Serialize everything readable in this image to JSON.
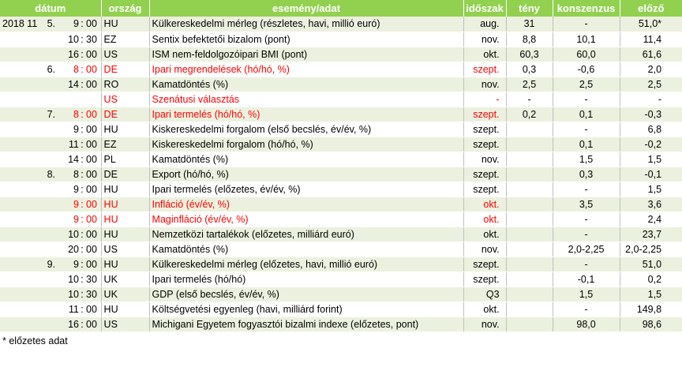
{
  "headers": {
    "date": "dátum",
    "country": "ország",
    "event": "esemény/adat",
    "period": "időszak",
    "actual": "tény",
    "consensus": "konszenzus",
    "previous": "előző"
  },
  "rows": [
    {
      "date": "2018 11.",
      "day": "5.",
      "hh": "9",
      "sep": ":",
      "mm": "00",
      "country": "HU",
      "event": "Külkereskedelmi mérleg (részletes, havi, millió euró)",
      "period": "aug.",
      "actual": "31",
      "consensus": "-",
      "previous": "51,0*",
      "red": false
    },
    {
      "date": "",
      "day": "",
      "hh": "10",
      "sep": ":",
      "mm": "30",
      "country": "EZ",
      "event": "Sentix befektetői bizalom (pont)",
      "period": "nov.",
      "actual": "8,8",
      "consensus": "10,1",
      "previous": "11,4",
      "red": false
    },
    {
      "date": "",
      "day": "",
      "hh": "16",
      "sep": ":",
      "mm": "00",
      "country": "US",
      "event": "ISM nem-feldolgozóipari BMI (pont)",
      "period": "okt.",
      "actual": "60,3",
      "consensus": "60,0",
      "previous": "61,6",
      "red": false
    },
    {
      "date": "",
      "day": "6.",
      "hh": "8",
      "sep": ":",
      "mm": "00",
      "country": "DE",
      "event": "Ipari megrendelések (hó/hó, %)",
      "period": "szept.",
      "actual": "0,3",
      "consensus": "-0,6",
      "previous": "2,0",
      "red": true
    },
    {
      "date": "",
      "day": "",
      "hh": "14",
      "sep": ":",
      "mm": "00",
      "country": "RO",
      "event": "Kamatdöntés (%)",
      "period": "nov.",
      "actual": "2,5",
      "consensus": "2,5",
      "previous": "2,5",
      "red": false
    },
    {
      "date": "",
      "day": "",
      "hh": "",
      "sep": "",
      "mm": "",
      "country": "US",
      "event": "Szenátusi választás",
      "period": "-",
      "actual": "-",
      "consensus": "-",
      "previous": "-",
      "red": true
    },
    {
      "date": "",
      "day": "7.",
      "hh": "8",
      "sep": ":",
      "mm": "00",
      "country": "DE",
      "event": "Ipari termelés (hó/hó, %)",
      "period": "szept.",
      "actual": "0,2",
      "consensus": "0,1",
      "previous": "-0,3",
      "red": true
    },
    {
      "date": "",
      "day": "",
      "hh": "9",
      "sep": ":",
      "mm": "00",
      "country": "HU",
      "event": "Kiskereskedelmi forgalom (első becslés, év/év, %)",
      "period": "szept.",
      "actual": "",
      "consensus": "-",
      "previous": "6,8",
      "red": false
    },
    {
      "date": "",
      "day": "",
      "hh": "11",
      "sep": ":",
      "mm": "00",
      "country": "EZ",
      "event": "Kiskereskedelmi forgalom (hó/hó, %)",
      "period": "szept.",
      "actual": "",
      "consensus": "0,1",
      "previous": "-0,2",
      "red": false
    },
    {
      "date": "",
      "day": "",
      "hh": "14",
      "sep": ":",
      "mm": "00",
      "country": "PL",
      "event": "Kamatdöntés (%)",
      "period": "nov.",
      "actual": "",
      "consensus": "1,5",
      "previous": "1,5",
      "red": false
    },
    {
      "date": "",
      "day": "8.",
      "hh": "8",
      "sep": ":",
      "mm": "00",
      "country": "DE",
      "event": "Export (hó/hó, %)",
      "period": "szept.",
      "actual": "",
      "consensus": "0,3",
      "previous": "-0,1",
      "red": false
    },
    {
      "date": "",
      "day": "",
      "hh": "9",
      "sep": ":",
      "mm": "00",
      "country": "HU",
      "event": "Ipari termelés (előzetes, év/év, %)",
      "period": "szept.",
      "actual": "",
      "consensus": "-",
      "previous": "1,5",
      "red": false
    },
    {
      "date": "",
      "day": "",
      "hh": "9",
      "sep": ":",
      "mm": "00",
      "country": "HU",
      "event": "Infláció (év/év, %)",
      "period": "okt.",
      "actual": "",
      "consensus": "3,5",
      "previous": "3,6",
      "red": true
    },
    {
      "date": "",
      "day": "",
      "hh": "9",
      "sep": ":",
      "mm": "00",
      "country": "HU",
      "event": "Maginfláció (év/év, %)",
      "period": "okt.",
      "actual": "",
      "consensus": "-",
      "previous": "2,4",
      "red": true
    },
    {
      "date": "",
      "day": "",
      "hh": "10",
      "sep": ":",
      "mm": "00",
      "country": "HU",
      "event": "Nemzetközi tartalékok (előzetes, milliárd euró)",
      "period": "okt.",
      "actual": "",
      "consensus": "-",
      "previous": "23,7",
      "red": false
    },
    {
      "date": "",
      "day": "",
      "hh": "20",
      "sep": ":",
      "mm": "00",
      "country": "US",
      "event": "Kamatdöntés (%)",
      "period": "nov.",
      "actual": "",
      "consensus": "2,0-2,25",
      "previous": "2,0-2,25",
      "red": false
    },
    {
      "date": "",
      "day": "9.",
      "hh": "9",
      "sep": ":",
      "mm": "00",
      "country": "HU",
      "event": "Külkereskedelmi mérleg (előzetes, havi, millió euró)",
      "period": "szept.",
      "actual": "",
      "consensus": "-",
      "previous": "51,0",
      "red": false
    },
    {
      "date": "",
      "day": "",
      "hh": "10",
      "sep": ":",
      "mm": "30",
      "country": "UK",
      "event": "Ipari termelés (hó/hó)",
      "period": "szept.",
      "actual": "",
      "consensus": "-0,1",
      "previous": "0,2",
      "red": false
    },
    {
      "date": "",
      "day": "",
      "hh": "10",
      "sep": ":",
      "mm": "30",
      "country": "UK",
      "event": "GDP (első becslés, év/év, %)",
      "period": "Q3",
      "actual": "",
      "consensus": "1,5",
      "previous": "1,5",
      "red": false
    },
    {
      "date": "",
      "day": "",
      "hh": "11",
      "sep": ":",
      "mm": "00",
      "country": "HU",
      "event": "Költségvetési egyenleg (havi, milliárd forint)",
      "period": "okt.",
      "actual": "",
      "consensus": "-",
      "previous": "149,8",
      "red": false
    },
    {
      "date": "",
      "day": "",
      "hh": "16",
      "sep": ":",
      "mm": "00",
      "country": "US",
      "event": "Michigani Egyetem fogyasztói bizalmi indexe (előzetes, pont)",
      "period": "nov.",
      "actual": "",
      "consensus": "98,0",
      "previous": "98,6",
      "red": false
    }
  ],
  "footnote": "* előzetes adat"
}
